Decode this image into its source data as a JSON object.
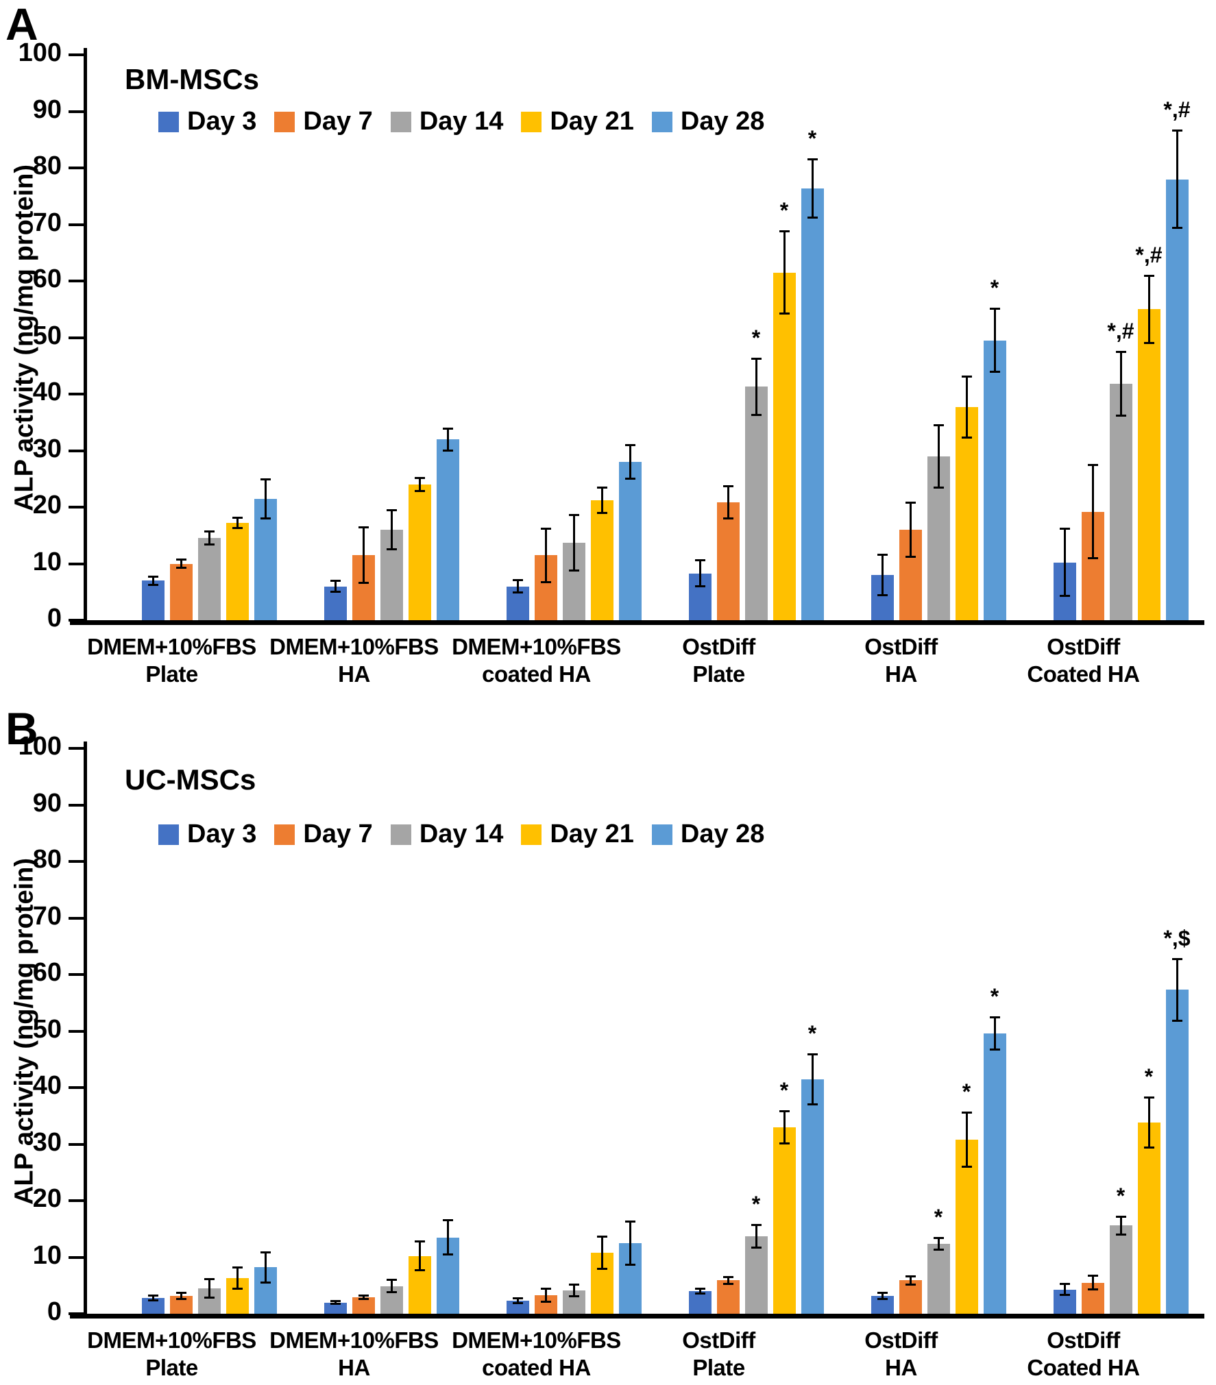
{
  "figure": {
    "background": "#ffffff",
    "error_bar_color": "#000000",
    "axis_color": "#000000"
  },
  "chart_data": [
    {
      "type": "bar",
      "panel_label": "A",
      "title": "BM-MSCs",
      "ylabel": "ALP activity (ng/mg protein)",
      "xlabel": "",
      "ylim": [
        0,
        100
      ],
      "yticks": [
        0,
        10,
        20,
        30,
        40,
        50,
        60,
        70,
        80,
        90,
        100
      ],
      "grid": false,
      "legend_position": "top-left-inside",
      "categories": [
        {
          "line1": "DMEM+10%FBS",
          "line2": "Plate"
        },
        {
          "line1": "DMEM+10%FBS",
          "line2": "HA"
        },
        {
          "line1": "DMEM+10%FBS",
          "line2": "coated HA"
        },
        {
          "line1": "OstDiff",
          "line2": "Plate"
        },
        {
          "line1": "OstDiff",
          "line2": "HA"
        },
        {
          "line1": "OstDiff",
          "line2": "Coated HA"
        }
      ],
      "series": [
        {
          "name": "Day 3",
          "color": "#4472C4",
          "values": [
            7.0,
            6.0,
            6.0,
            8.3,
            8.0,
            10.2
          ],
          "errors": [
            0.8,
            1.0,
            1.2,
            2.4,
            3.6,
            6.0
          ],
          "sig": [
            "",
            "",
            "",
            "",
            "",
            ""
          ]
        },
        {
          "name": "Day 7",
          "color": "#ED7D31",
          "values": [
            10.0,
            11.5,
            11.5,
            20.8,
            16.0,
            19.2
          ],
          "errors": [
            0.8,
            5.0,
            4.8,
            2.9,
            4.8,
            8.3
          ],
          "sig": [
            "",
            "",
            "",
            "",
            "",
            ""
          ]
        },
        {
          "name": "Day 14",
          "color": "#A5A5A5",
          "values": [
            14.5,
            16.0,
            13.7,
            41.3,
            29.0,
            41.8
          ],
          "errors": [
            1.2,
            3.5,
            5.0,
            5.0,
            5.6,
            5.7
          ],
          "sig": [
            "",
            "",
            "",
            "*",
            "",
            "*,#"
          ]
        },
        {
          "name": "Day 21",
          "color": "#FFC000",
          "values": [
            17.2,
            24.0,
            21.2,
            61.5,
            37.7,
            55.0
          ],
          "errors": [
            1.0,
            1.2,
            2.3,
            7.3,
            5.5,
            6.0
          ],
          "sig": [
            "",
            "",
            "",
            "*",
            "",
            "*,#"
          ]
        },
        {
          "name": "Day 28",
          "color": "#5B9BD5",
          "values": [
            21.5,
            32.0,
            28.0,
            76.4,
            49.5,
            78.0
          ],
          "errors": [
            3.5,
            2.0,
            3.0,
            5.2,
            5.6,
            8.7
          ],
          "sig": [
            "",
            "",
            "",
            "*",
            "*",
            "*,#"
          ]
        }
      ]
    },
    {
      "type": "bar",
      "panel_label": "B",
      "title": "UC-MSCs",
      "ylabel": "ALP activity (ng/mg protein)",
      "xlabel": "",
      "ylim": [
        0,
        100
      ],
      "yticks": [
        0,
        10,
        20,
        30,
        40,
        50,
        60,
        70,
        80,
        90,
        100
      ],
      "grid": false,
      "legend_position": "top-left-inside",
      "categories": [
        {
          "line1": "DMEM+10%FBS",
          "line2": "Plate"
        },
        {
          "line1": "DMEM+10%FBS",
          "line2": "HA"
        },
        {
          "line1": "DMEM+10%FBS",
          "line2": "coated HA"
        },
        {
          "line1": "OstDiff",
          "line2": "Plate"
        },
        {
          "line1": "OstDiff",
          "line2": "HA"
        },
        {
          "line1": "OstDiff",
          "line2": "Coated HA"
        }
      ],
      "series": [
        {
          "name": "Day 3",
          "color": "#4472C4",
          "values": [
            2.8,
            2.0,
            2.3,
            4.0,
            3.2,
            4.3
          ],
          "errors": [
            0.5,
            0.3,
            0.5,
            0.5,
            0.6,
            1.0
          ],
          "sig": [
            "",
            "",
            "",
            "",
            "",
            ""
          ]
        },
        {
          "name": "Day 7",
          "color": "#ED7D31",
          "values": [
            3.2,
            2.9,
            3.3,
            5.9,
            5.9,
            5.5
          ],
          "errors": [
            0.6,
            0.4,
            1.2,
            0.7,
            0.8,
            1.3
          ],
          "sig": [
            "",
            "",
            "",
            "",
            "",
            ""
          ]
        },
        {
          "name": "Day 14",
          "color": "#A5A5A5",
          "values": [
            4.5,
            4.9,
            4.1,
            13.7,
            12.4,
            15.6
          ],
          "errors": [
            1.7,
            1.2,
            1.1,
            2.1,
            1.1,
            1.6
          ],
          "sig": [
            "",
            "",
            "",
            "*",
            "*",
            "*"
          ]
        },
        {
          "name": "Day 21",
          "color": "#FFC000",
          "values": [
            6.3,
            10.2,
            10.8,
            33.0,
            30.8,
            33.8
          ],
          "errors": [
            1.9,
            2.6,
            2.9,
            2.9,
            4.8,
            4.5
          ],
          "sig": [
            "",
            "",
            "",
            "*",
            "*",
            "*"
          ]
        },
        {
          "name": "Day 28",
          "color": "#5B9BD5",
          "values": [
            8.2,
            13.5,
            12.5,
            41.5,
            49.6,
            57.3
          ],
          "errors": [
            2.7,
            3.1,
            3.9,
            4.5,
            2.9,
            5.5
          ],
          "sig": [
            "",
            "",
            "",
            "*",
            "*",
            "*,$"
          ]
        }
      ]
    }
  ]
}
